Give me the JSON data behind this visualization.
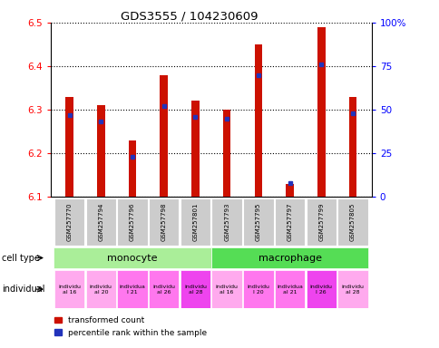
{
  "title": "GDS3555 / 104230609",
  "samples": [
    "GSM257770",
    "GSM257794",
    "GSM257796",
    "GSM257798",
    "GSM257801",
    "GSM257793",
    "GSM257795",
    "GSM257797",
    "GSM257799",
    "GSM257805"
  ],
  "transformed_counts": [
    6.33,
    6.31,
    6.23,
    6.38,
    6.32,
    6.3,
    6.45,
    6.13,
    6.49,
    6.33
  ],
  "percentile_ranks": [
    47,
    43,
    23,
    52,
    46,
    45,
    70,
    8,
    76,
    48
  ],
  "ylim_left": [
    6.1,
    6.5
  ],
  "ylim_right": [
    0,
    100
  ],
  "yticks_left": [
    6.1,
    6.2,
    6.3,
    6.4,
    6.5
  ],
  "yticks_right": [
    0,
    25,
    50,
    75,
    100
  ],
  "right_tick_labels": [
    "0",
    "25",
    "50",
    "75",
    "100%"
  ],
  "bar_color": "#cc1100",
  "percentile_color": "#2233bb",
  "monocyte_color": "#aaee99",
  "macrophage_color": "#55dd55",
  "ind_colors": [
    "#ffaaee",
    "#ffaaee",
    "#ff77ee",
    "#ff77ee",
    "#ee44ee",
    "#ffaaee",
    "#ff77ee",
    "#ff77ee",
    "#ee44ee",
    "#ffaaee"
  ],
  "ind_labels": [
    "individu\nal 16",
    "individu\nal 20",
    "individua\nl 21",
    "individu\nal 26",
    "individu\nal 28",
    "individu\nal 16",
    "individu\nl 20",
    "individua\nal 21",
    "individu\nl 26",
    "individu\nal 28"
  ],
  "bar_width": 0.25,
  "baseline": 6.1
}
